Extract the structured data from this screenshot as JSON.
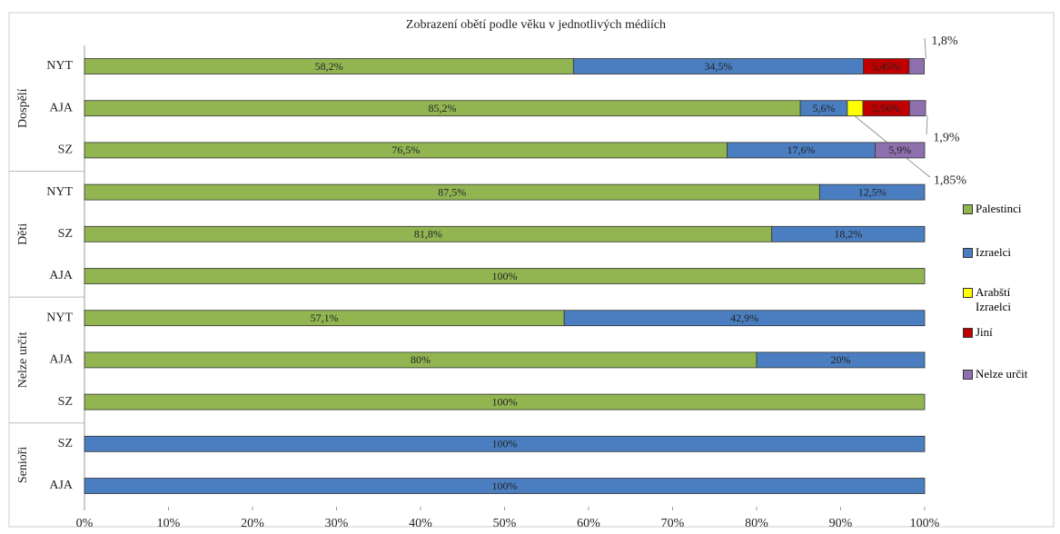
{
  "chart_data": {
    "type": "stacked_bar_horizontal",
    "title": "Zobrazení obětí podle věku v jednotlivých médiích",
    "groups": [
      {
        "name": "Dospělí",
        "categories": [
          "NYT",
          "AJA",
          "SZ"
        ]
      },
      {
        "name": "Děti",
        "categories": [
          "NYT",
          "SZ",
          "AJA"
        ]
      },
      {
        "name": "Nelze určit",
        "categories": [
          "NYT",
          "AJA",
          "SZ"
        ]
      },
      {
        "name": "Senioři",
        "categories": [
          "SZ",
          "AJA"
        ]
      }
    ],
    "series": [
      {
        "name": "Palestinci",
        "color": "#92b552",
        "values": [
          58.2,
          85.2,
          76.5,
          87.5,
          81.8,
          100,
          57.1,
          80,
          100,
          null,
          null
        ],
        "value_labels": [
          "58,2%",
          "85,2%",
          "76,5%",
          "87,5%",
          "81,8%",
          "100%",
          "57,1%",
          "80%",
          "100%",
          null,
          null
        ]
      },
      {
        "name": "Izraelci",
        "color": "#4a7ec0",
        "values": [
          34.5,
          5.6,
          17.6,
          12.5,
          18.2,
          null,
          42.9,
          20,
          null,
          100,
          100
        ],
        "value_labels": [
          "34,5%",
          "5,6%",
          "17,6%",
          "12,5%",
          "18,2%",
          null,
          "42,9%",
          "20%",
          null,
          "100%",
          "100%"
        ]
      },
      {
        "name": "Arabští Izraelci",
        "color": "#ffff00",
        "values": [
          null,
          1.85,
          null,
          null,
          null,
          null,
          null,
          null,
          null,
          null,
          null
        ],
        "value_labels": [
          null,
          "1,85%",
          null,
          null,
          null,
          null,
          null,
          null,
          null,
          null,
          null
        ]
      },
      {
        "name": "Jiní",
        "color": "#c00000",
        "values": [
          5.45,
          5.56,
          null,
          null,
          null,
          null,
          null,
          null,
          null,
          null,
          null
        ],
        "value_labels": [
          "5,45%",
          "5,56%",
          null,
          null,
          null,
          null,
          null,
          null,
          null,
          null,
          null
        ]
      },
      {
        "name": "Nelze určit",
        "color": "#8e70ae",
        "values": [
          1.8,
          1.9,
          5.9,
          null,
          null,
          null,
          null,
          null,
          null,
          null,
          null
        ],
        "value_labels": [
          "1,8%",
          "1,9%",
          "5,9%",
          null,
          null,
          null,
          null,
          null,
          null,
          null,
          null
        ]
      }
    ],
    "xlim": [
      0,
      100
    ],
    "xticks": [
      {
        "value": 0,
        "label": "0%"
      },
      {
        "value": 10,
        "label": "10%"
      },
      {
        "value": 20,
        "label": "20%"
      },
      {
        "value": 30,
        "label": "30%"
      },
      {
        "value": 40,
        "label": "40%"
      },
      {
        "value": 50,
        "label": "50%"
      },
      {
        "value": 60,
        "label": "60%"
      },
      {
        "value": 70,
        "label": "70%"
      },
      {
        "value": 80,
        "label": "80%"
      },
      {
        "value": 90,
        "label": "90%"
      },
      {
        "value": 100,
        "label": "100%"
      }
    ],
    "legend": "right"
  }
}
